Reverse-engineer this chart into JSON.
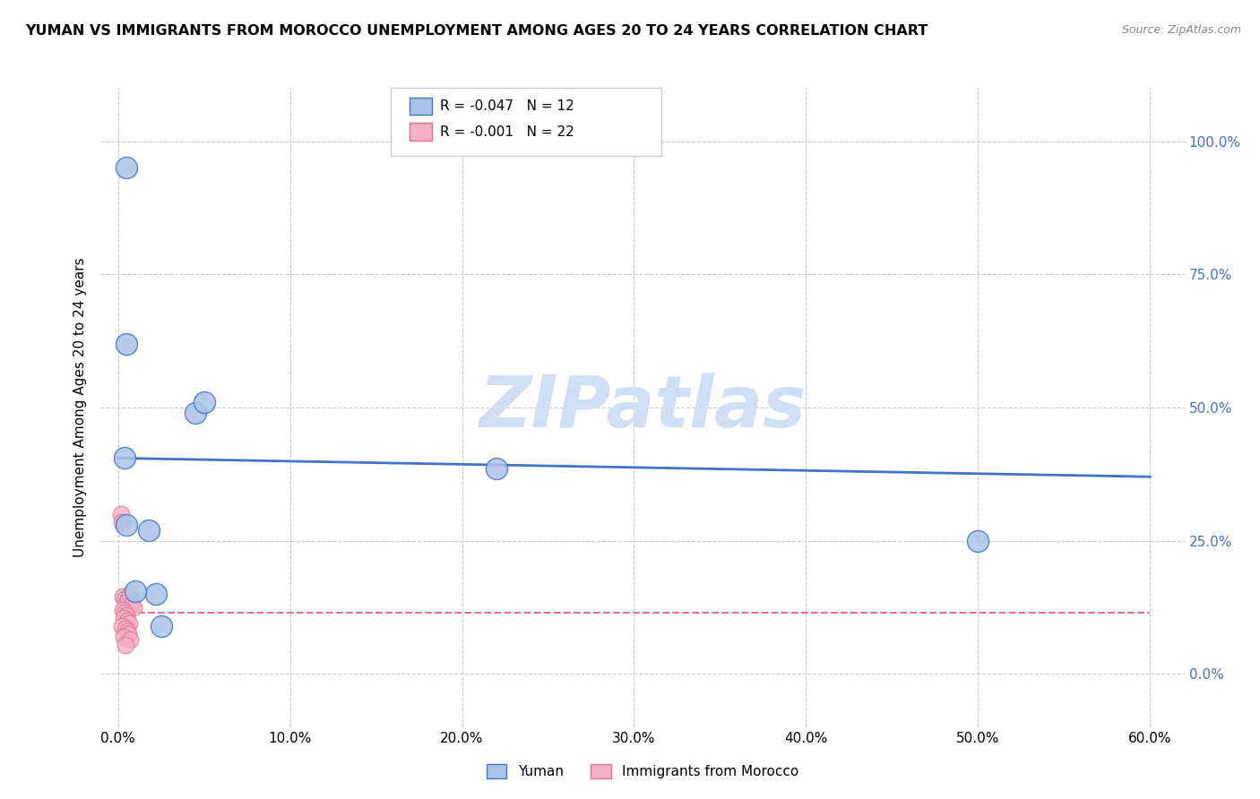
{
  "title": "YUMAN VS IMMIGRANTS FROM MOROCCO UNEMPLOYMENT AMONG AGES 20 TO 24 YEARS CORRELATION CHART",
  "source": "Source: ZipAtlas.com",
  "xlabel_vals": [
    0.0,
    10.0,
    20.0,
    30.0,
    40.0,
    50.0,
    60.0
  ],
  "ylabel_vals": [
    0.0,
    25.0,
    50.0,
    75.0,
    100.0
  ],
  "ylabel_label": "Unemployment Among Ages 20 to 24 years",
  "yuman_x": [
    0.4,
    0.5,
    4.5,
    5.0,
    0.5,
    22.0,
    0.5,
    1.8,
    2.2,
    50.0,
    1.0,
    2.5
  ],
  "yuman_y": [
    40.5,
    95.0,
    49.0,
    51.0,
    62.0,
    38.5,
    28.0,
    27.0,
    15.0,
    25.0,
    15.5,
    9.0
  ],
  "morocco_x": [
    0.15,
    0.25,
    0.3,
    0.4,
    0.5,
    0.6,
    0.7,
    0.8,
    0.9,
    0.3,
    0.4,
    0.5,
    0.35,
    0.55,
    0.65,
    0.25,
    0.45,
    0.55,
    0.6,
    0.35,
    0.7,
    0.45
  ],
  "morocco_y": [
    30.0,
    28.5,
    14.5,
    14.0,
    13.5,
    14.0,
    15.0,
    13.0,
    12.5,
    12.0,
    11.5,
    11.0,
    10.5,
    10.0,
    9.5,
    9.0,
    8.5,
    8.0,
    7.5,
    7.0,
    6.5,
    5.5
  ],
  "yuman_trend_x": [
    0.0,
    60.0
  ],
  "yuman_trend_y": [
    40.5,
    37.0
  ],
  "morocco_trend_x": [
    0.0,
    60.0
  ],
  "morocco_trend_y": [
    11.5,
    11.5
  ],
  "yuman_R": -0.047,
  "yuman_N": 12,
  "morocco_R": -0.001,
  "morocco_N": 22,
  "blue_color": "#a8c4e8",
  "pink_color": "#f5b0c5",
  "blue_line_color": "#4472c4",
  "pink_line_color": "#e07090",
  "grid_color": "#cccccc",
  "watermark_color": "#d0dff5",
  "right_tick_color": "#4472c4",
  "xlim": [
    -1,
    62
  ],
  "ylim": [
    -10,
    110
  ]
}
